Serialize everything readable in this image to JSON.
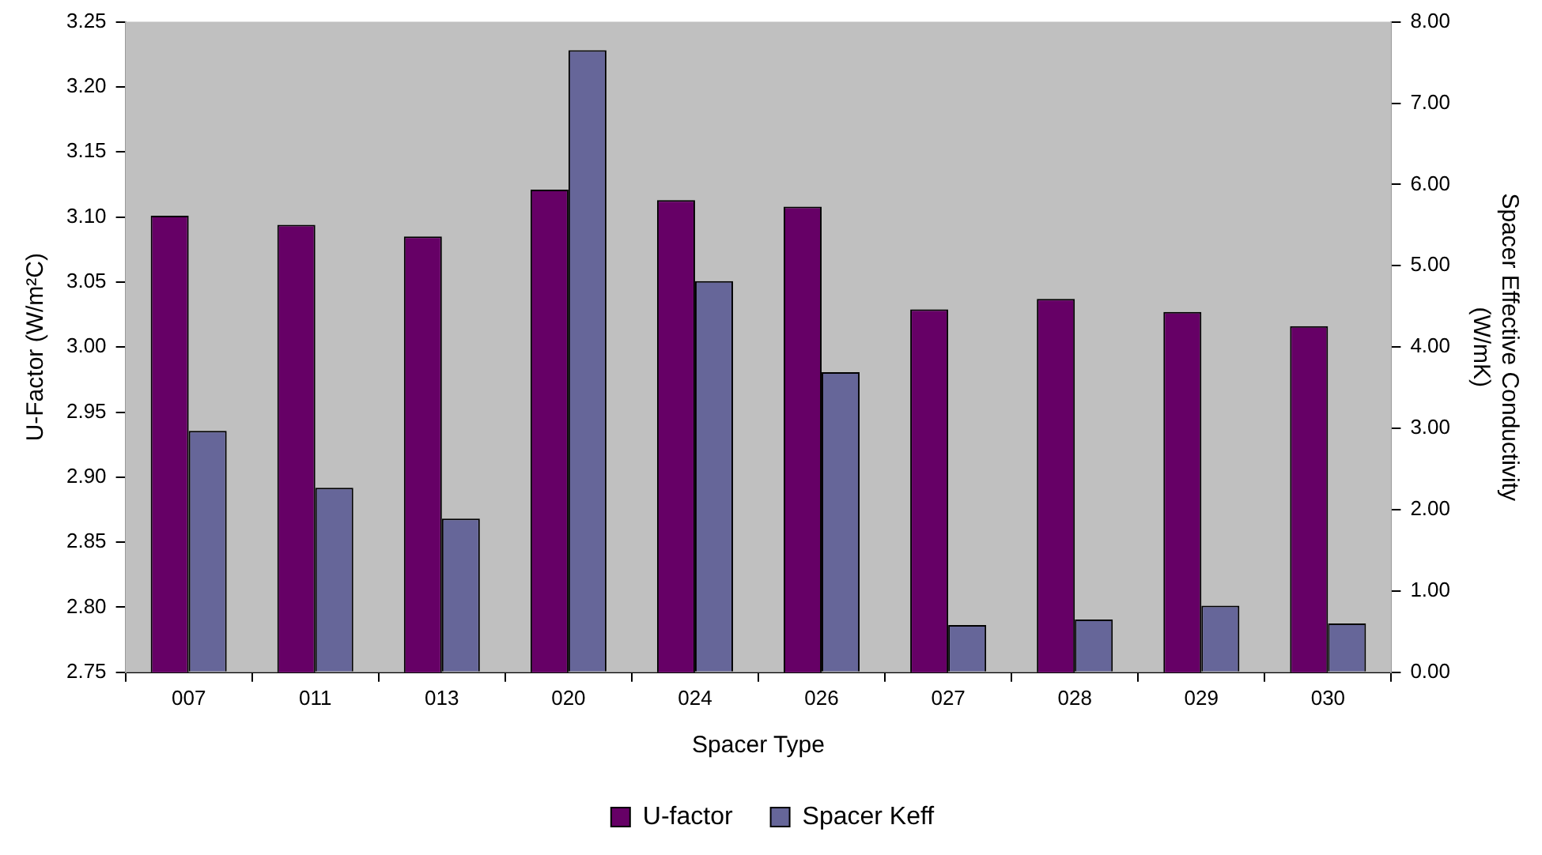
{
  "chart_data": {
    "type": "bar",
    "categories": [
      "007",
      "011",
      "013",
      "020",
      "024",
      "026",
      "027",
      "028",
      "029",
      "030"
    ],
    "xlabel": "Spacer Type",
    "ylabel": "U-Factor (W/m²C)",
    "y2label": "Spacer Effective Conductivity\n(W/mK)",
    "series": [
      {
        "name": "U-factor",
        "color": "#660066",
        "values": [
          3.101,
          3.094,
          3.085,
          3.121,
          3.113,
          3.108,
          3.029,
          3.037,
          3.027,
          3.016
        ]
      },
      {
        "name": "Spacer Keff",
        "color": "#666699",
        "axis": "y2",
        "values": [
          2.97,
          2.27,
          1.89,
          7.65,
          4.81,
          3.69,
          0.58,
          0.65,
          0.82,
          0.6
        ]
      }
    ],
    "ylim": [
      2.75,
      3.25
    ],
    "yticks": [
      2.75,
      {
        "value": 2.8,
        "label": "2.80"
      },
      2.85,
      {
        "value": 2.9,
        "label": "2.90"
      },
      2.95,
      {
        "value": 3,
        "label": "3.00"
      },
      3.05,
      {
        "value": 3.1,
        "label": "3.10"
      },
      3.15,
      {
        "value": 3.2,
        "label": "3.20"
      },
      3.25
    ],
    "y2lim": [
      0,
      8
    ],
    "y2ticks": [
      {
        "value": 0,
        "label": "0.00"
      },
      {
        "value": 1,
        "label": "1.00"
      },
      {
        "value": 2,
        "label": "2.00"
      },
      {
        "value": 3,
        "label": "3.00"
      },
      {
        "value": 4,
        "label": "4.00"
      },
      {
        "value": 5,
        "label": "5.00"
      },
      {
        "value": 6,
        "label": "6.00"
      },
      {
        "value": 7,
        "label": "7.00"
      },
      {
        "value": 8,
        "label": "8.00"
      }
    ],
    "grid": false,
    "legend": "bottom"
  }
}
